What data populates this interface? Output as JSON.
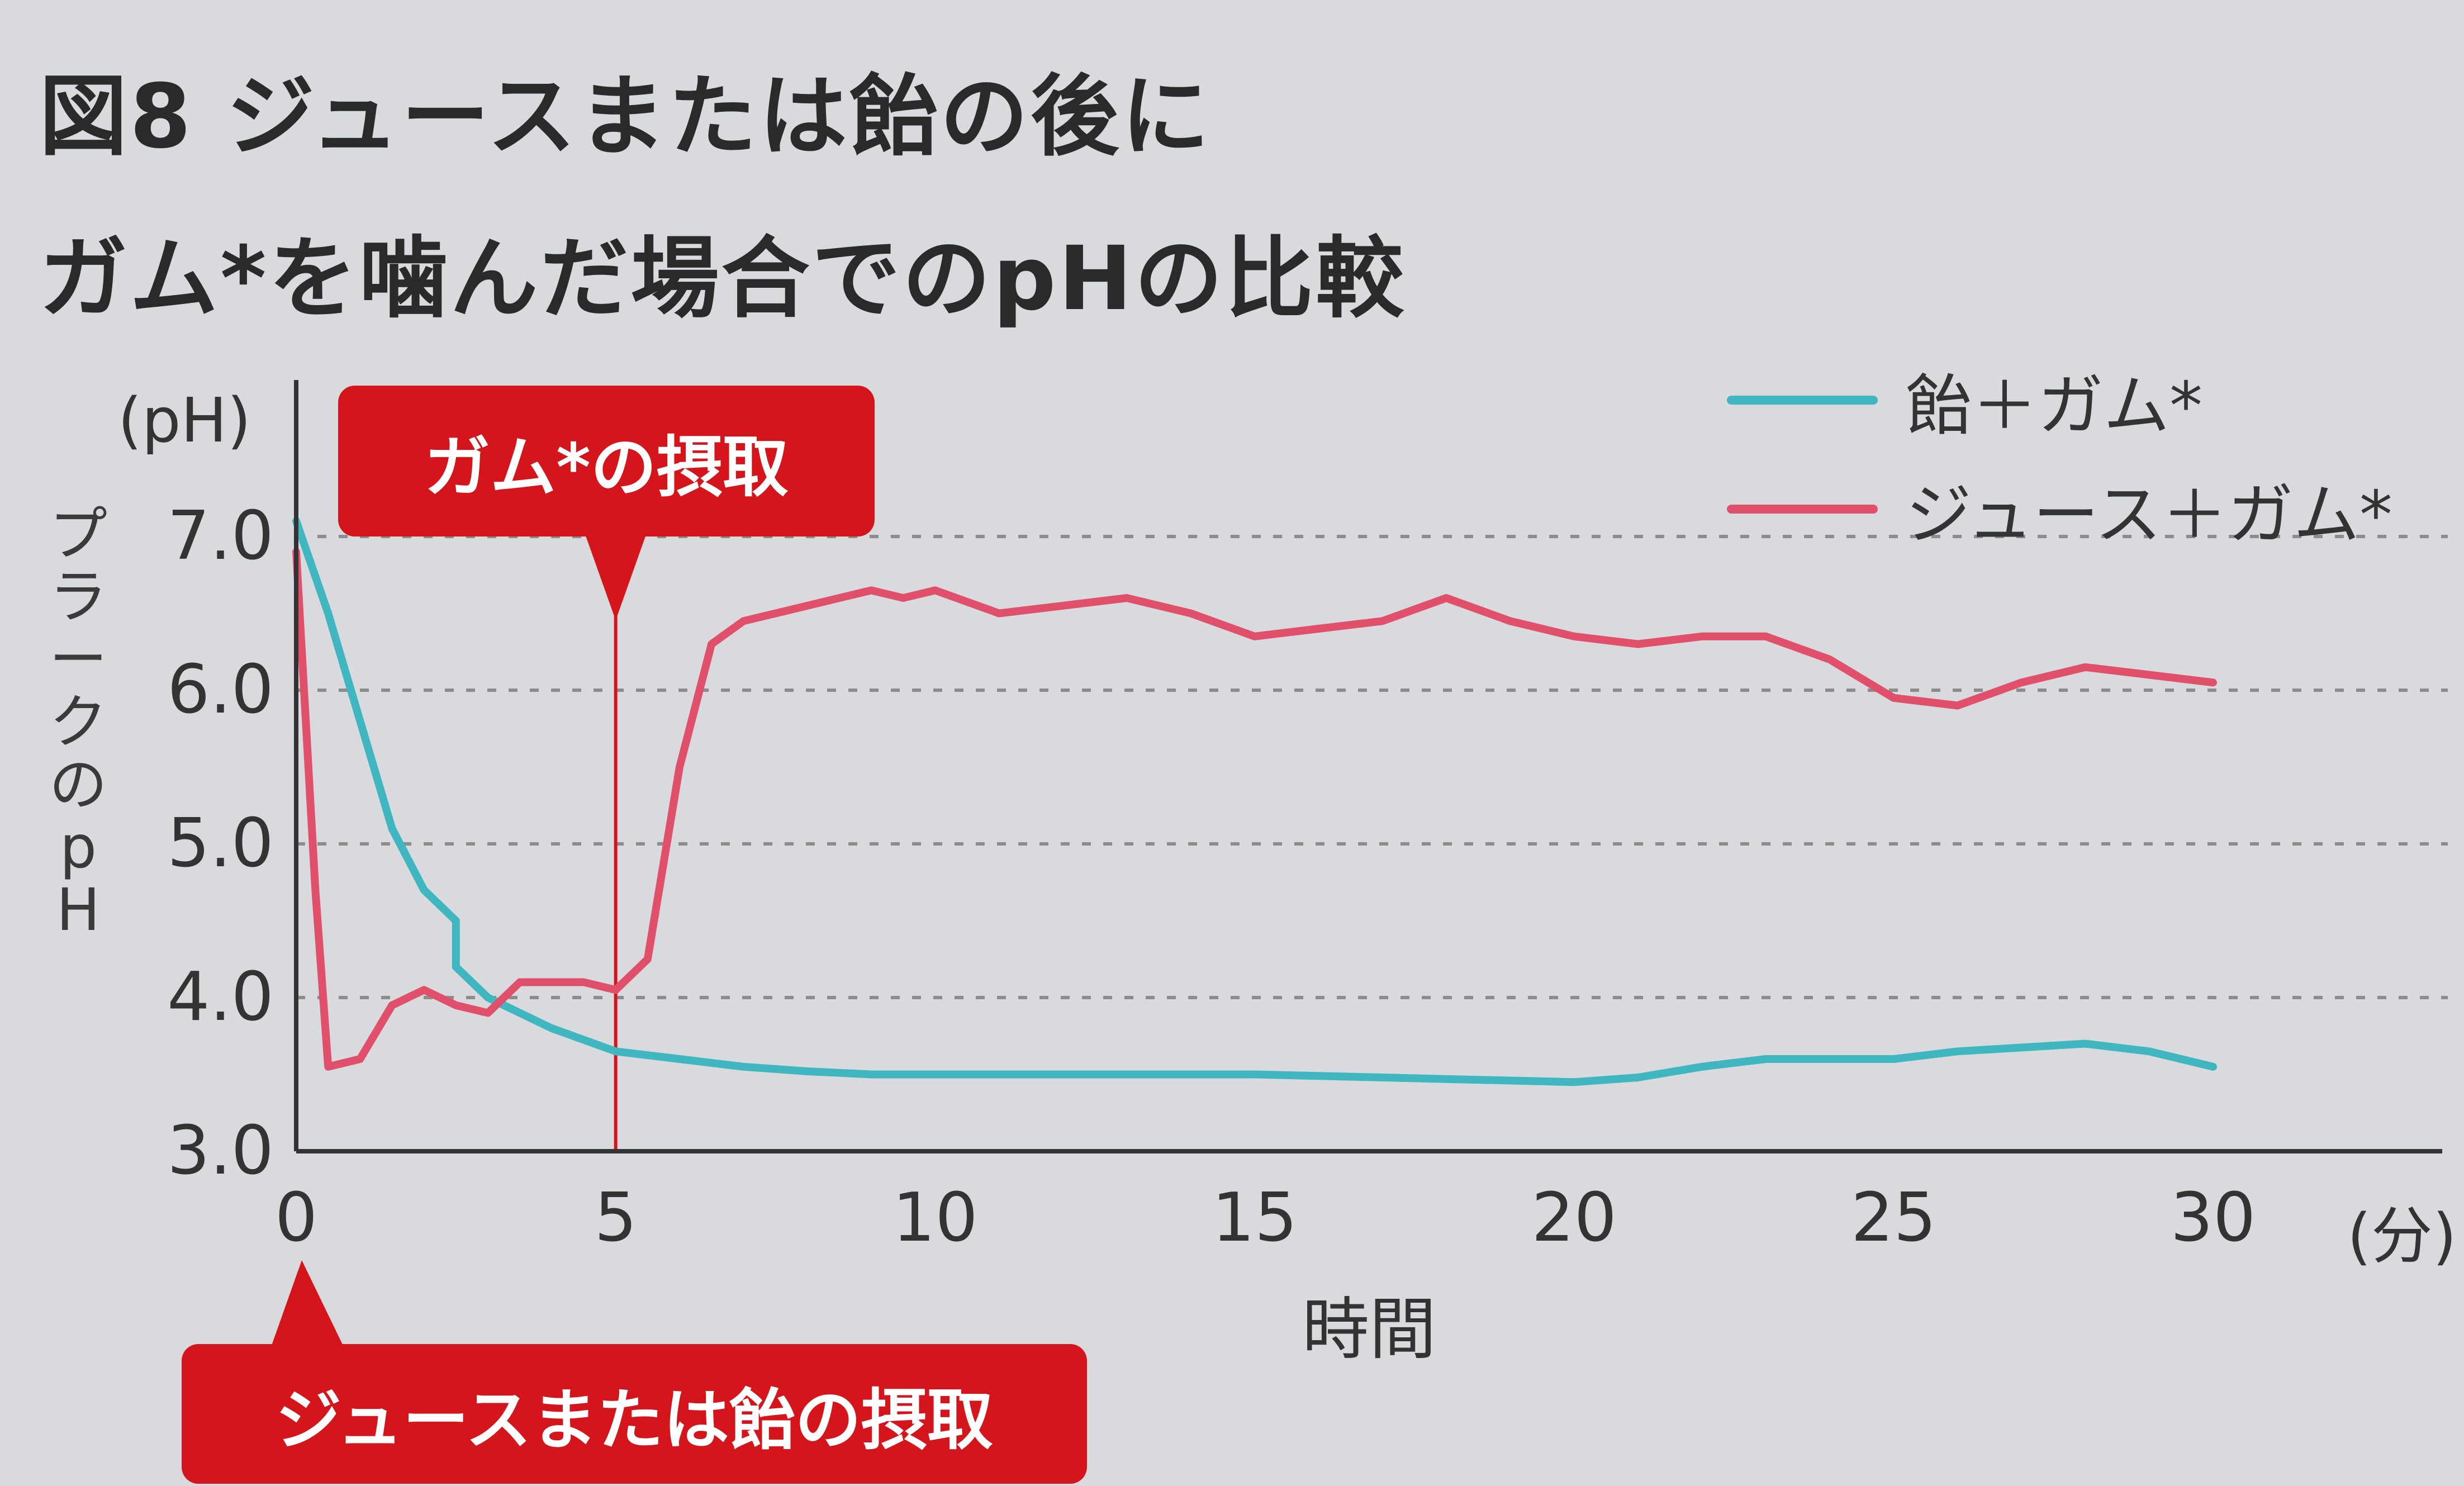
{
  "title": {
    "line1": "図8 ジュースまたは飴の後に",
    "line2": "ガム*を噛んだ場合でのpHの比較"
  },
  "colors": {
    "candy_series": "#3fb6c0",
    "juice_series": "#e0506b",
    "callout": "#d4161c",
    "axis": "#333333",
    "grid": "#8c8c8c",
    "background": "#d8dadd"
  },
  "callouts": {
    "gum": "ガム*の摂取",
    "juice_or_candy": "ジュースまたは飴の摂取"
  },
  "chart_data": {
    "type": "line",
    "ylabel_unit": "(pH)",
    "ylabel": "プラークのpH",
    "xlabel": "時間",
    "xlabel_unit": "(分)",
    "xlim": [
      0,
      30
    ],
    "ylim": [
      3.0,
      7.0
    ],
    "xticks": [
      0,
      5,
      10,
      15,
      20,
      25,
      30
    ],
    "yticks": [
      3.0,
      4.0,
      5.0,
      6.0,
      7.0
    ],
    "ytick_labels": [
      "3.0",
      "4.0",
      "5.0",
      "6.0",
      "7.0"
    ],
    "grid": "dashed horizontal at 4.0, 5.0, 6.0, 7.0",
    "legend_position": "top-right",
    "markers": [
      {
        "x": 5,
        "label": "ガム*の摂取"
      }
    ],
    "series": [
      {
        "name": "飴＋ガム*",
        "x": [
          0,
          0.5,
          1,
          1.5,
          2,
          2.5,
          2.5,
          3,
          4,
          5,
          6,
          7,
          8,
          9,
          10,
          12,
          15,
          17,
          20,
          21,
          22,
          23,
          25,
          26,
          28,
          29,
          30
        ],
        "y": [
          7.1,
          6.5,
          5.8,
          5.1,
          4.7,
          4.5,
          4.2,
          4.0,
          3.8,
          3.65,
          3.6,
          3.55,
          3.52,
          3.5,
          3.5,
          3.5,
          3.5,
          3.48,
          3.45,
          3.48,
          3.55,
          3.6,
          3.6,
          3.65,
          3.7,
          3.65,
          3.55
        ]
      },
      {
        "name": "ジュース＋ガム*",
        "x": [
          0,
          0.3,
          0.5,
          1,
          1.5,
          2,
          2.5,
          3,
          3.5,
          4,
          4.5,
          5,
          5.5,
          6,
          6.5,
          7,
          8,
          9,
          9.5,
          10,
          11,
          12,
          13,
          14,
          15,
          16,
          17,
          18,
          19,
          20,
          21,
          22,
          23,
          24,
          25,
          26,
          27,
          28,
          29,
          30
        ],
        "y": [
          6.9,
          4.7,
          3.55,
          3.6,
          3.95,
          4.05,
          3.95,
          3.9,
          4.1,
          4.1,
          4.1,
          4.05,
          4.25,
          5.5,
          6.3,
          6.45,
          6.55,
          6.65,
          6.6,
          6.65,
          6.5,
          6.55,
          6.6,
          6.5,
          6.35,
          6.4,
          6.45,
          6.6,
          6.45,
          6.35,
          6.3,
          6.35,
          6.35,
          6.2,
          5.95,
          5.9,
          6.05,
          6.15,
          6.1,
          6.05
        ]
      }
    ]
  }
}
